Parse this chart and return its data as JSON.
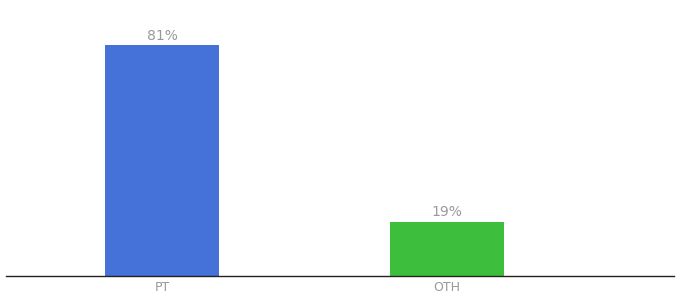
{
  "categories": [
    "PT",
    "OTH"
  ],
  "values": [
    81,
    19
  ],
  "bar_colors": [
    "#4472D8",
    "#3DBF3D"
  ],
  "value_labels": [
    "81%",
    "19%"
  ],
  "background_color": "#ffffff",
  "ylim": [
    0,
    95
  ],
  "bar_width": 0.4,
  "label_fontsize": 10,
  "tick_fontsize": 9,
  "label_color": "#999999",
  "tick_color": "#999999",
  "spine_color": "#222222"
}
